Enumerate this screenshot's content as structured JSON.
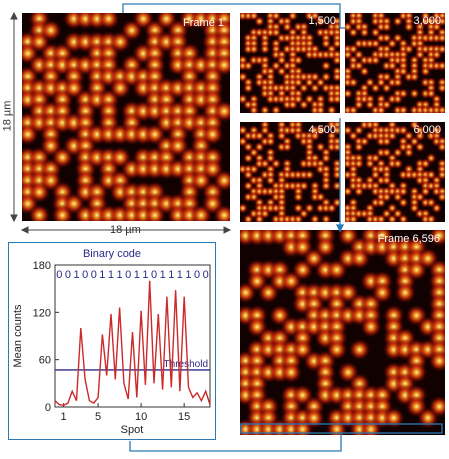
{
  "frames": {
    "frame1": {
      "label": "Frame 1"
    },
    "f1500": {
      "label": "1,500"
    },
    "f3000": {
      "label": "3,000"
    },
    "f4500": {
      "label": "4,500"
    },
    "f6000": {
      "label": "6,000"
    },
    "f6596": {
      "label": "Frame 6,596"
    }
  },
  "scale": {
    "vertical": "18 µm",
    "horizontal": "18 µm"
  },
  "colors": {
    "connector": "#2a7ab5",
    "curve": "#cc2a2a",
    "threshold": "#2a2a8a",
    "text_blue": "#2a2a8a"
  },
  "chart_data": {
    "type": "line",
    "title": "Binary code",
    "code": "001001110110111100",
    "xlabel": "Spot",
    "ylabel": "Mean counts",
    "xticks": [
      1,
      5,
      10,
      15
    ],
    "yticks": [
      0,
      60,
      120,
      180
    ],
    "xlim": [
      0,
      18
    ],
    "ylim": [
      0,
      180
    ],
    "threshold": {
      "label": "Threshold",
      "value": 47
    },
    "x": [
      0,
      0.5,
      1,
      1.5,
      2,
      2.5,
      3,
      3.5,
      4,
      4.5,
      5,
      5.5,
      6,
      6.5,
      7,
      7.5,
      8,
      8.5,
      9,
      9.5,
      10,
      10.5,
      11,
      11.5,
      12,
      12.5,
      13,
      13.5,
      14,
      14.5,
      15,
      15.5,
      16,
      16.5,
      17,
      17.5,
      18
    ],
    "y": [
      8,
      3,
      2,
      5,
      20,
      8,
      100,
      35,
      8,
      5,
      12,
      92,
      40,
      118,
      35,
      126,
      30,
      10,
      95,
      12,
      122,
      28,
      160,
      30,
      118,
      22,
      140,
      25,
      148,
      20,
      140,
      25,
      12,
      18,
      8,
      20,
      3
    ]
  }
}
